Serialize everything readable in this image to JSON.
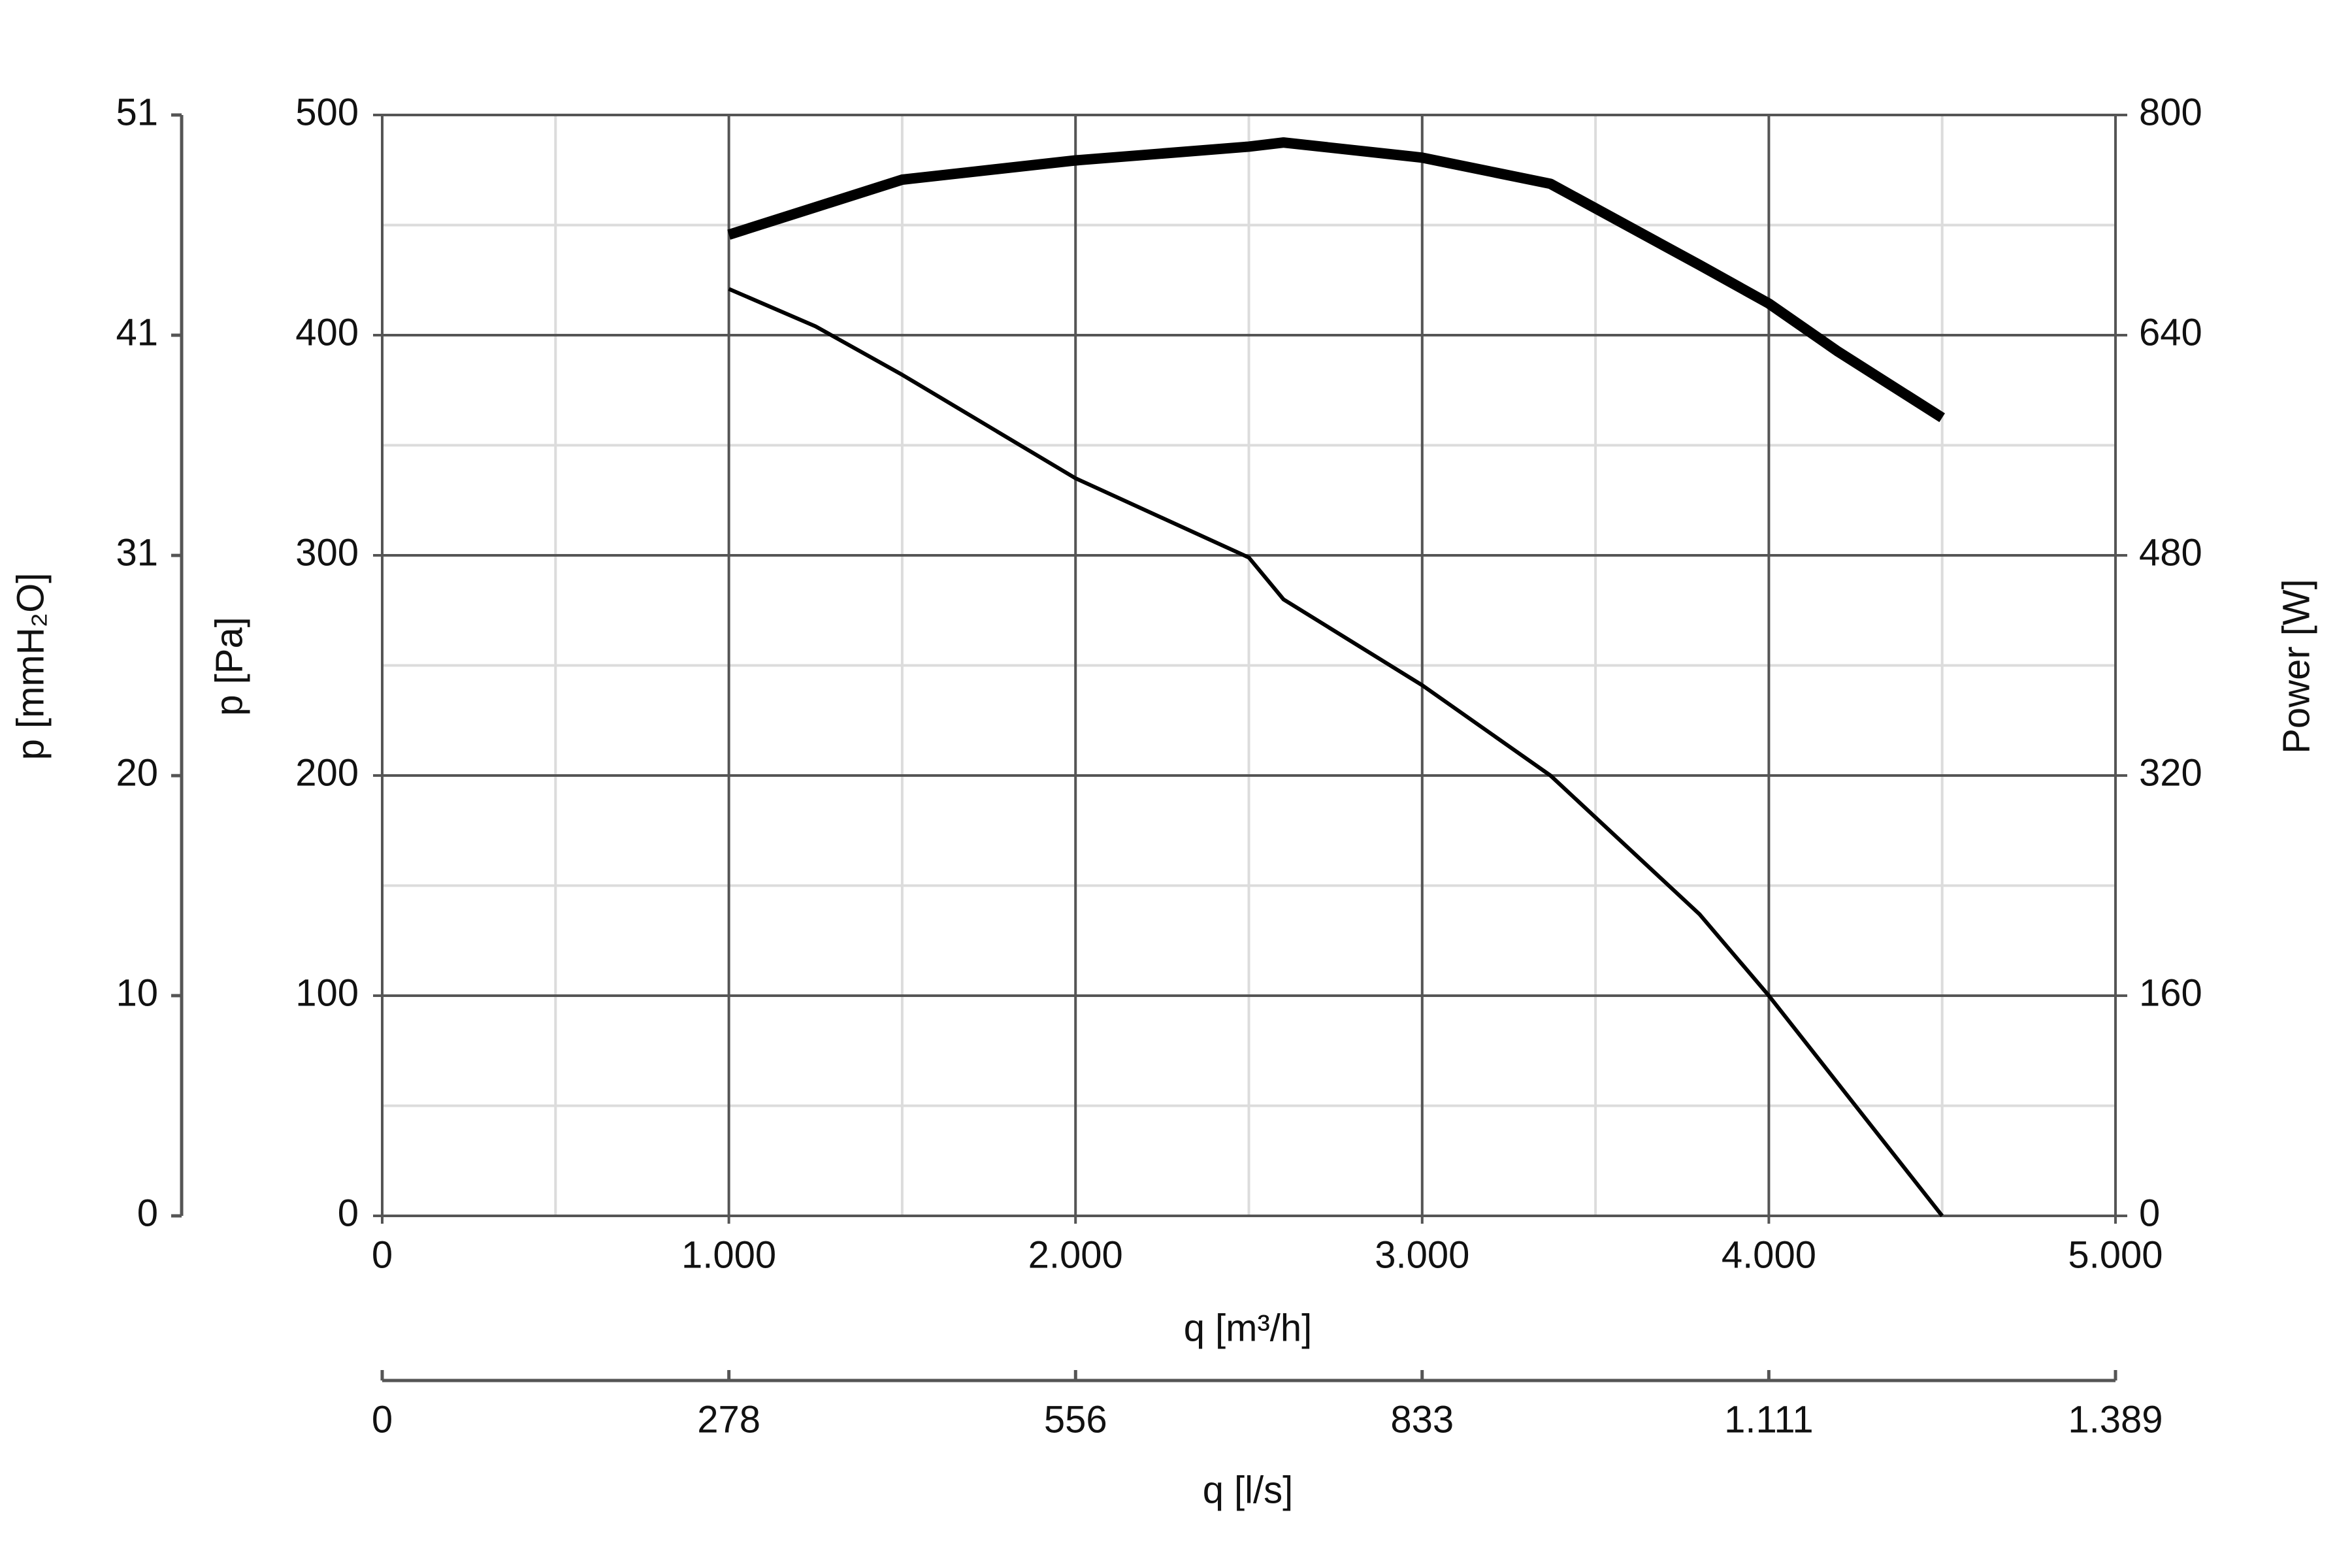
{
  "chart_data": {
    "type": "line",
    "xlabel": "q [m³/h]",
    "ylabel": "p [Pa]",
    "y2label": "Power [W]",
    "y3label": "p [mmH₂O]",
    "x2label": "q [l/s]",
    "xlim": [
      0,
      5000
    ],
    "xticks": [
      0,
      {
        "value": 1000,
        "label": "1.000"
      },
      {
        "value": 2000,
        "label": "2.000"
      },
      {
        "value": 3000,
        "label": "3.000"
      },
      {
        "value": 4000,
        "label": "4.000"
      },
      {
        "value": 5000,
        "label": "5.000"
      }
    ],
    "minor_xticks": [
      500,
      1500,
      2500,
      3500,
      4500
    ],
    "ylim": [
      0,
      500
    ],
    "yticks": [
      0,
      100,
      200,
      300,
      400,
      500
    ],
    "minor_yticks": [
      50,
      150,
      250,
      350,
      450
    ],
    "y2lim": [
      0,
      800
    ],
    "y2ticks": [
      0,
      160,
      320,
      480,
      640,
      800
    ],
    "y3lim": [
      0,
      50.99
    ],
    "y3ticks": [
      0,
      {
        "value": 10.2,
        "label": "10"
      },
      {
        "value": 20.39,
        "label": "20"
      },
      {
        "value": 30.59,
        "label": "31"
      },
      {
        "value": 40.79,
        "label": "41"
      },
      {
        "value": 50.99,
        "label": "51"
      }
    ],
    "x2lim": [
      0,
      1388.9
    ],
    "x2ticks": [
      0,
      {
        "value": 277.8,
        "label": "278"
      },
      {
        "value": 555.6,
        "label": "556"
      },
      {
        "value": 833.3,
        "label": "833"
      },
      {
        "value": 1111.1,
        "label": "1.111"
      },
      {
        "value": 1388.9,
        "label": "1.389"
      }
    ],
    "grid": true,
    "x": [
      1000,
      1250,
      1500,
      2000,
      2500,
      2600,
      3000,
      3370,
      3800,
      4000,
      4200,
      4500
    ],
    "series": [
      {
        "color": "#000000",
        "width": 6,
        "values": [
          421,
          404,
          382,
          335,
          299,
          280,
          241,
          200,
          137,
          100,
          60,
          0
        ]
      },
      {
        "color": "#000000",
        "width": 16,
        "axis": "y2",
        "values": [
          713,
          733,
          753,
          767,
          777,
          780,
          769,
          750,
          691,
          663,
          628,
          580
        ]
      }
    ]
  }
}
